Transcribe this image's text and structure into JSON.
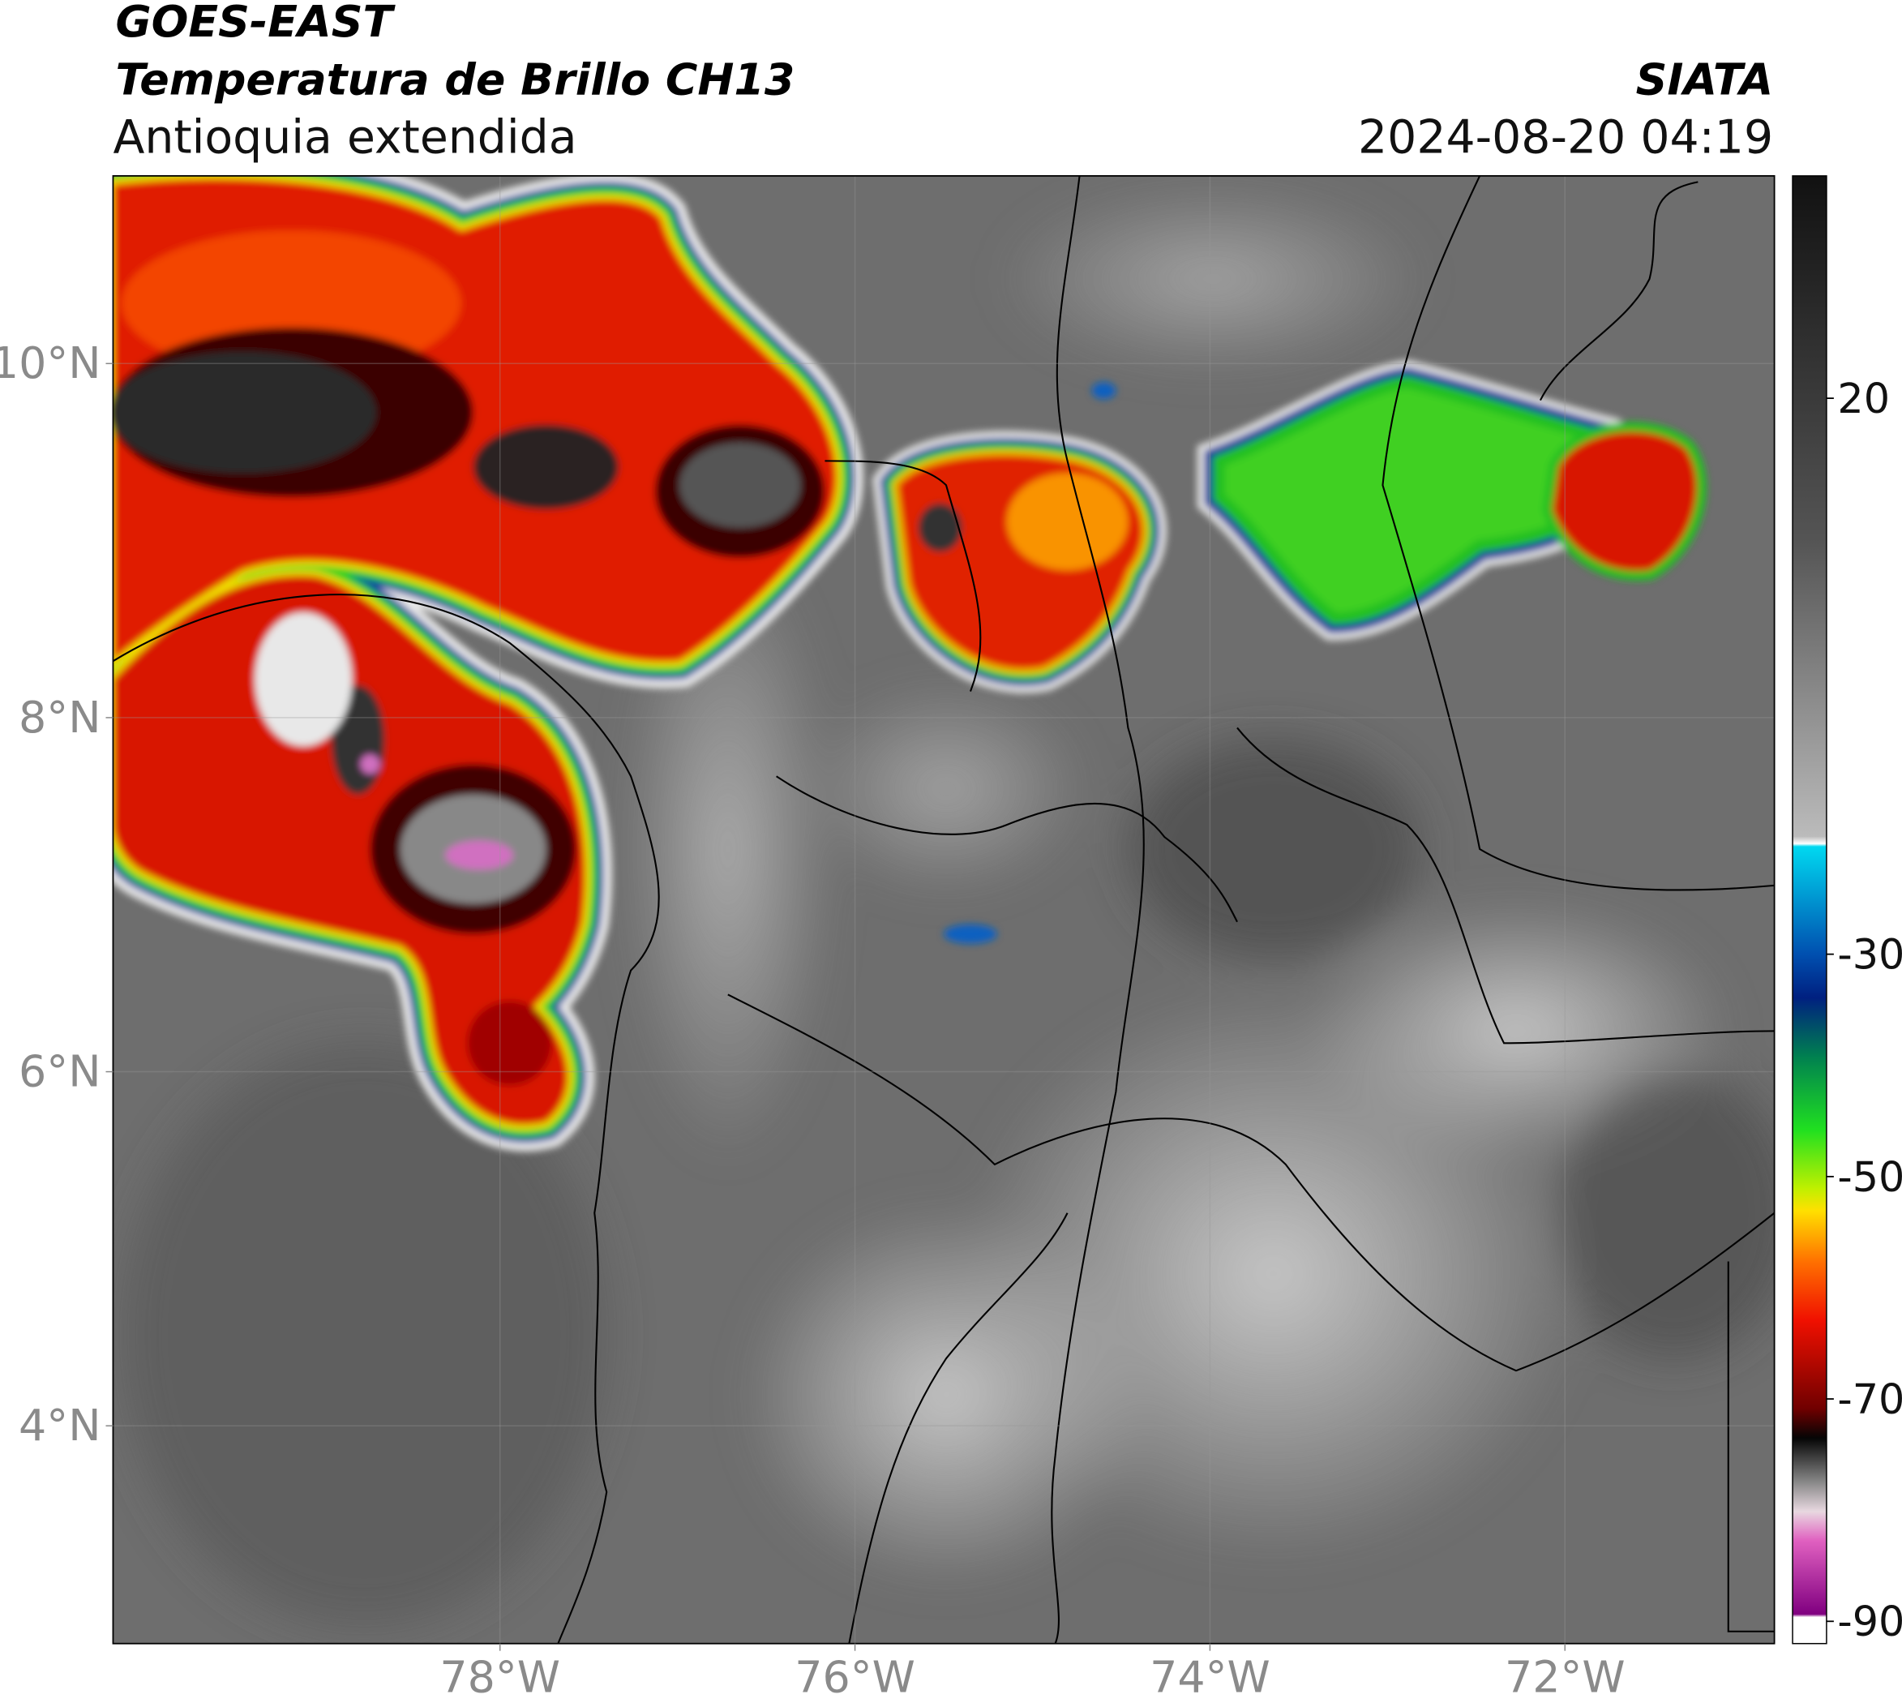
{
  "header": {
    "title": "GOES-EAST",
    "subtitle": "Temperatura de Brillo CH13",
    "region": "Antioquia extendida",
    "source": "SIATA",
    "datetime": "2024-08-20 04:19"
  },
  "map": {
    "xlim": [
      -80.18,
      -70.82
    ],
    "ylim": [
      2.77,
      11.06
    ],
    "xticks": [
      {
        "value": -78,
        "label": "78°W"
      },
      {
        "value": -76,
        "label": "76°W"
      },
      {
        "value": -74,
        "label": "74°W"
      },
      {
        "value": -72,
        "label": "72°W"
      }
    ],
    "yticks": [
      {
        "value": 10,
        "label": "10°N"
      },
      {
        "value": 8,
        "label": "8°N"
      },
      {
        "value": 6,
        "label": "6°N"
      },
      {
        "value": 4,
        "label": "4°N"
      }
    ]
  },
  "colorbar": {
    "lim": [
      -92,
      40
    ],
    "ticks": [
      20,
      -30,
      -50,
      -70,
      -90
    ]
  }
}
